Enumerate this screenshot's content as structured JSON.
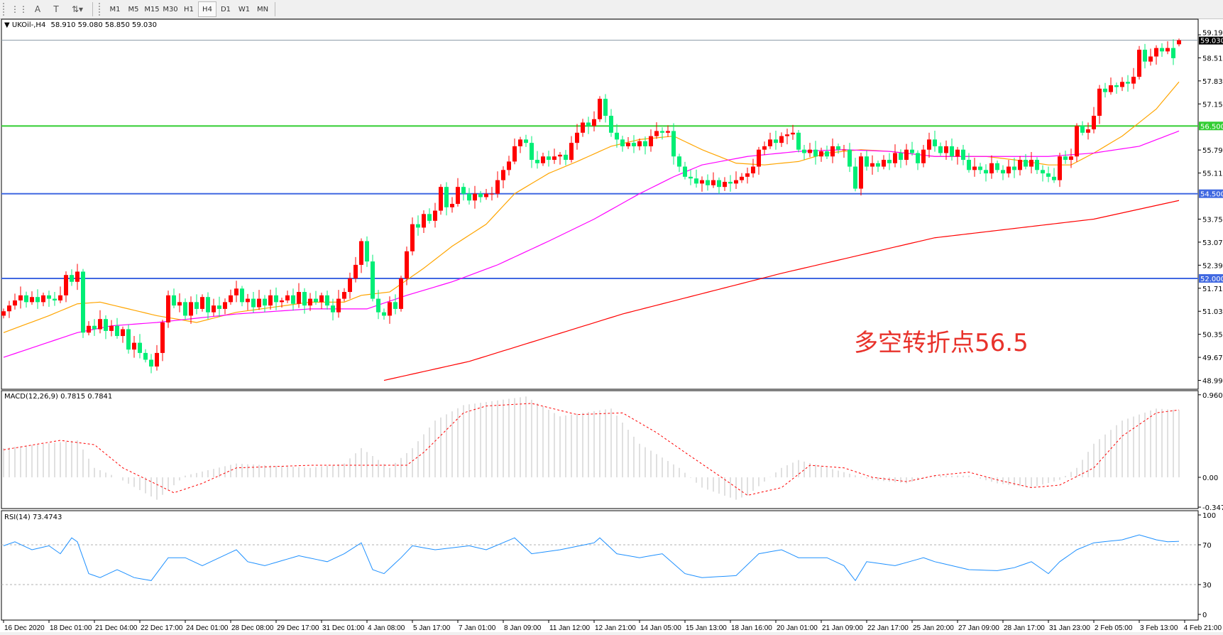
{
  "toolbar": {
    "tools": [
      {
        "name": "fibo-icon",
        "glyph": "⋮⋮"
      },
      {
        "name": "text-icon",
        "glyph": "A"
      },
      {
        "name": "text-label-icon",
        "glyph": "T"
      },
      {
        "name": "arrows-icon",
        "glyph": "⇅▾"
      }
    ],
    "timeframes": [
      "M1",
      "M5",
      "M15",
      "M30",
      "H1",
      "H4",
      "D1",
      "W1",
      "MN"
    ],
    "active_timeframe": "H4"
  },
  "main": {
    "symbol_header": "UKOil-,H4",
    "ohlc_header": "58.910 59.080 58.850 59.030",
    "current_price_label": "59.030",
    "price_ticks": [
      "59.190",
      "58.510",
      "57.830",
      "57.150",
      "55.790",
      "55.110",
      "53.750",
      "53.070",
      "52.390",
      "51.710",
      "51.030",
      "50.350",
      "49.670",
      "48.990"
    ],
    "annotation": "多空转折点56.5"
  },
  "macd": {
    "header": "MACD(12,26,9) 0.7815 0.7841",
    "ticks": [
      "0.9604",
      "0.00",
      "-0.3473"
    ]
  },
  "rsi": {
    "header": "RSI(14) 73.4743",
    "ticks": [
      "100",
      "70",
      "30",
      "0"
    ]
  },
  "time_labels": [
    "16 Dec 2020",
    "18 Dec 01:00",
    "21 Dec 04:00",
    "22 Dec 17:00",
    "24 Dec 01:00",
    "28 Dec 08:00",
    "29 Dec 17:00",
    "31 Dec 01:00",
    "4 Jan 08:00",
    "5 Jan 17:00",
    "7 Jan 01:00",
    "8 Jan 09:00",
    "11 Jan 12:00",
    "12 Jan 21:00",
    "14 Jan 05:00",
    "15 Jan 13:00",
    "18 Jan 16:00",
    "20 Jan 01:00",
    "21 Jan 09:00",
    "22 Jan 17:00",
    "25 Jan 20:00",
    "27 Jan 09:00",
    "28 Jan 17:00",
    "31 Jan 23:00",
    "2 Feb 05:00",
    "3 Feb 13:00",
    "4 Feb 21:00"
  ],
  "colors": {
    "bull_candle": "#ff0000",
    "bear_candle": "#00ee76",
    "ma_fast": "#ffa500",
    "ma_mid": "#ff00ff",
    "ma_slow": "#ff0000",
    "level_green": "#32cd32",
    "level_blue": "#4169e1",
    "macd_hist": "#c0c0c0",
    "macd_signal": "#ff0000",
    "rsi_line": "#1e90ff"
  },
  "chart_data": [
    {
      "type": "candlestick",
      "symbol": "UKOil-",
      "timeframe": "H4",
      "ylim": [
        48.99,
        59.19
      ],
      "last_bar": {
        "open": 58.91,
        "high": 59.08,
        "low": 58.85,
        "close": 59.03
      },
      "closes": [
        51.03,
        51.2,
        51.35,
        51.5,
        51.3,
        51.45,
        51.3,
        51.5,
        51.4,
        51.35,
        51.5,
        52.1,
        51.9,
        52.2,
        50.4,
        50.6,
        50.5,
        50.8,
        50.45,
        50.6,
        50.3,
        50.5,
        49.9,
        50.1,
        49.8,
        49.6,
        49.4,
        49.8,
        50.7,
        51.5,
        51.2,
        51.3,
        50.9,
        51.3,
        51.1,
        51.45,
        51.0,
        51.2,
        51.1,
        51.3,
        51.5,
        51.7,
        51.3,
        51.4,
        51.15,
        51.4,
        51.2,
        51.5,
        51.3,
        51.35,
        51.5,
        51.25,
        51.6,
        51.2,
        51.4,
        51.3,
        51.5,
        51.2,
        51.0,
        51.4,
        51.6,
        52.0,
        52.4,
        53.1,
        52.5,
        51.4,
        51.0,
        50.9,
        51.3,
        51.1,
        52.0,
        52.8,
        53.6,
        53.5,
        53.9,
        53.7,
        54.0,
        54.7,
        54.1,
        54.2,
        54.7,
        54.5,
        54.3,
        54.5,
        54.4,
        54.5,
        54.5,
        54.9,
        55.2,
        55.45,
        55.9,
        56.1,
        56.0,
        55.5,
        55.4,
        55.6,
        55.5,
        55.6,
        55.65,
        55.5,
        56.0,
        56.3,
        56.6,
        56.5,
        56.7,
        57.3,
        56.8,
        56.3,
        56.1,
        55.9,
        56.0,
        55.9,
        56.05,
        55.9,
        56.2,
        56.35,
        56.3,
        56.35,
        55.6,
        55.3,
        55.0,
        54.95,
        54.8,
        54.9,
        54.75,
        54.9,
        54.7,
        54.85,
        54.8,
        54.9,
        55.0,
        55.1,
        55.3,
        55.8,
        55.9,
        56.1,
        56.0,
        56.2,
        56.25,
        56.3,
        55.8,
        55.7,
        55.8,
        55.6,
        55.75,
        55.6,
        55.9,
        55.8,
        55.8,
        55.3,
        54.65,
        55.6,
        55.3,
        55.4,
        55.3,
        55.5,
        55.4,
        55.7,
        55.5,
        55.8,
        55.7,
        55.4,
        55.8,
        56.1,
        55.9,
        55.7,
        55.9,
        55.6,
        55.8,
        55.5,
        55.2,
        55.3,
        55.2,
        55.1,
        55.4,
        55.2,
        55.1,
        55.3,
        55.2,
        55.5,
        55.3,
        55.5,
        55.2,
        55.1,
        55.0,
        54.9,
        55.6,
        55.5,
        55.6,
        56.5,
        56.3,
        56.4,
        56.8,
        57.6,
        57.5,
        57.7,
        57.65,
        57.8,
        57.75,
        57.95,
        58.75,
        58.4,
        58.55,
        58.8,
        58.7,
        58.8,
        58.5,
        59.03
      ],
      "first_open": 50.9,
      "horizontal_levels": [
        {
          "price": 56.5,
          "label": "56.500",
          "color": "#32cd32"
        },
        {
          "price": 54.5,
          "label": "54.500",
          "color": "#4169e1"
        },
        {
          "price": 52.0,
          "label": "52.000",
          "color": "#4169e1"
        }
      ],
      "moving_averages": [
        {
          "color": "#ffa500",
          "points": [
            [
              0,
              50.4
            ],
            [
              8,
              50.9
            ],
            [
              13,
              51.25
            ],
            [
              17,
              51.3
            ],
            [
              27,
              50.9
            ],
            [
              34,
              50.7
            ],
            [
              41,
              51.0
            ],
            [
              54,
              51.3
            ],
            [
              60,
              51.3
            ],
            [
              63,
              51.5
            ],
            [
              68,
              51.6
            ],
            [
              74,
              52.3
            ],
            [
              79,
              52.95
            ],
            [
              85,
              53.6
            ],
            [
              90,
              54.5
            ],
            [
              96,
              55.1
            ],
            [
              101,
              55.45
            ],
            [
              107,
              55.9
            ],
            [
              112,
              56.1
            ],
            [
              118,
              56.2
            ],
            [
              123,
              55.8
            ],
            [
              129,
              55.4
            ],
            [
              134,
              55.35
            ],
            [
              140,
              55.45
            ],
            [
              145,
              55.7
            ],
            [
              151,
              55.8
            ],
            [
              156,
              55.75
            ],
            [
              164,
              55.6
            ],
            [
              173,
              55.6
            ],
            [
              178,
              55.5
            ],
            [
              184,
              55.35
            ],
            [
              188,
              55.35
            ],
            [
              192,
              55.7
            ],
            [
              197,
              56.2
            ],
            [
              203,
              57.0
            ],
            [
              207,
              57.8
            ]
          ]
        },
        {
          "color": "#ff00ff",
          "points": [
            [
              0,
              49.67
            ],
            [
              13,
              50.4
            ],
            [
              19,
              50.6
            ],
            [
              27,
              50.7
            ],
            [
              41,
              50.95
            ],
            [
              54,
              51.1
            ],
            [
              64,
              51.1
            ],
            [
              71,
              51.5
            ],
            [
              79,
              51.9
            ],
            [
              87,
              52.4
            ],
            [
              96,
              53.1
            ],
            [
              104,
              53.75
            ],
            [
              112,
              54.5
            ],
            [
              118,
              55.0
            ],
            [
              123,
              55.35
            ],
            [
              131,
              55.6
            ],
            [
              140,
              55.75
            ],
            [
              148,
              55.8
            ],
            [
              156,
              55.75
            ],
            [
              164,
              55.6
            ],
            [
              173,
              55.6
            ],
            [
              184,
              55.6
            ],
            [
              192,
              55.7
            ],
            [
              200,
              55.9
            ],
            [
              207,
              56.35
            ]
          ]
        },
        {
          "color": "#ff0000",
          "points": [
            [
              67,
              48.99
            ],
            [
              82,
              49.55
            ],
            [
              109,
              50.95
            ],
            [
              137,
              52.15
            ],
            [
              164,
              53.2
            ],
            [
              192,
              53.75
            ],
            [
              207,
              54.3
            ]
          ]
        }
      ]
    },
    {
      "type": "bar+line",
      "indicator": "MACD(12,26,9)",
      "ylim": [
        -0.3473,
        0.9604
      ],
      "histogram_points": [
        [
          0,
          0.34
        ],
        [
          13,
          0.43
        ],
        [
          16,
          0.11
        ],
        [
          20,
          0
        ],
        [
          27,
          -0.26
        ],
        [
          32,
          0.02
        ],
        [
          41,
          0.16
        ],
        [
          54,
          0.11
        ],
        [
          60,
          0.16
        ],
        [
          63,
          0.34
        ],
        [
          68,
          0.11
        ],
        [
          72,
          0.34
        ],
        [
          76,
          0.66
        ],
        [
          81,
          0.84
        ],
        [
          92,
          0.94
        ],
        [
          98,
          0.71
        ],
        [
          107,
          0.8
        ],
        [
          112,
          0.39
        ],
        [
          119,
          0.11
        ],
        [
          123,
          -0.12
        ],
        [
          129,
          -0.26
        ],
        [
          131,
          -0.21
        ],
        [
          137,
          0.11
        ],
        [
          140,
          0.2
        ],
        [
          148,
          0.06
        ],
        [
          153,
          -0.03
        ],
        [
          159,
          -0.07
        ],
        [
          164,
          0.02
        ],
        [
          170,
          0.02
        ],
        [
          175,
          -0.07
        ],
        [
          181,
          -0.12
        ],
        [
          186,
          -0.03
        ],
        [
          189,
          0.11
        ],
        [
          192,
          0.39
        ],
        [
          197,
          0.66
        ],
        [
          203,
          0.8
        ],
        [
          207,
          0.7815
        ]
      ],
      "signal_points": [
        [
          0,
          0.32
        ],
        [
          10,
          0.43
        ],
        [
          16,
          0.38
        ],
        [
          21,
          0.11
        ],
        [
          30,
          -0.18
        ],
        [
          35,
          -0.07
        ],
        [
          41,
          0.11
        ],
        [
          54,
          0.14
        ],
        [
          63,
          0.14
        ],
        [
          71,
          0.14
        ],
        [
          74,
          0.29
        ],
        [
          81,
          0.75
        ],
        [
          85,
          0.83
        ],
        [
          93,
          0.86
        ],
        [
          101,
          0.73
        ],
        [
          109,
          0.75
        ],
        [
          115,
          0.52
        ],
        [
          120,
          0.29
        ],
        [
          126,
          0.02
        ],
        [
          131,
          -0.21
        ],
        [
          137,
          -0.12
        ],
        [
          142,
          0.14
        ],
        [
          148,
          0.11
        ],
        [
          153,
          0.0
        ],
        [
          159,
          -0.05
        ],
        [
          164,
          0.02
        ],
        [
          170,
          0.06
        ],
        [
          175,
          -0.03
        ],
        [
          181,
          -0.12
        ],
        [
          186,
          -0.09
        ],
        [
          192,
          0.11
        ],
        [
          197,
          0.48
        ],
        [
          203,
          0.75
        ],
        [
          207,
          0.7841
        ]
      ]
    },
    {
      "type": "line",
      "indicator": "RSI(14)",
      "ylim": [
        0,
        100
      ],
      "levels": [
        70,
        30
      ],
      "points": [
        [
          0,
          69
        ],
        [
          2,
          73
        ],
        [
          5,
          65
        ],
        [
          8,
          69
        ],
        [
          10,
          61
        ],
        [
          12,
          77
        ],
        [
          13,
          73
        ],
        [
          15,
          41
        ],
        [
          17,
          37
        ],
        [
          20,
          45
        ],
        [
          23,
          37
        ],
        [
          26,
          34
        ],
        [
          29,
          57
        ],
        [
          32,
          57
        ],
        [
          35,
          49
        ],
        [
          41,
          65
        ],
        [
          43,
          53
        ],
        [
          46,
          49
        ],
        [
          52,
          59
        ],
        [
          57,
          53
        ],
        [
          60,
          61
        ],
        [
          63,
          72
        ],
        [
          65,
          45
        ],
        [
          67,
          41
        ],
        [
          70,
          57
        ],
        [
          72,
          69
        ],
        [
          76,
          65
        ],
        [
          82,
          69
        ],
        [
          85,
          65
        ],
        [
          90,
          77
        ],
        [
          93,
          61
        ],
        [
          98,
          65
        ],
        [
          104,
          72
        ],
        [
          105,
          77
        ],
        [
          108,
          61
        ],
        [
          112,
          57
        ],
        [
          116,
          61
        ],
        [
          120,
          41
        ],
        [
          123,
          37
        ],
        [
          129,
          39
        ],
        [
          133,
          61
        ],
        [
          137,
          65
        ],
        [
          140,
          57
        ],
        [
          145,
          57
        ],
        [
          148,
          49
        ],
        [
          150,
          34
        ],
        [
          152,
          53
        ],
        [
          157,
          49
        ],
        [
          162,
          57
        ],
        [
          164,
          53
        ],
        [
          170,
          45
        ],
        [
          175,
          44
        ],
        [
          178,
          47
        ],
        [
          181,
          53
        ],
        [
          184,
          41
        ],
        [
          186,
          53
        ],
        [
          189,
          65
        ],
        [
          192,
          72
        ],
        [
          197,
          75
        ],
        [
          200,
          80
        ],
        [
          203,
          75
        ],
        [
          205,
          73
        ],
        [
          207,
          73.4743
        ]
      ]
    }
  ]
}
